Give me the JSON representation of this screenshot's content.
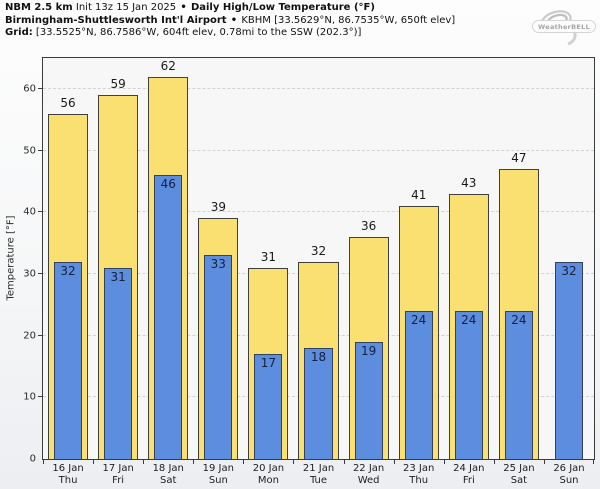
{
  "header": {
    "model_bold": "NBM 2.5 km",
    "init_text": "Init 13z 15 Jan 2025",
    "separator": "•",
    "product_bold": "Daily High/Low Temperature (°F)",
    "station_bold": "Birmingham-Shuttlesworth Int'l Airport",
    "station_info": "KBHM [33.5629°N, 86.7535°W, 650ft elev]",
    "grid_bold": "Grid:",
    "grid_info": "[33.5525°N, 86.7586°W, 604ft elev, 0.78mi to the SSW (202.3°)]"
  },
  "logo": {
    "brand": "WeatherBELL"
  },
  "chart_data": {
    "type": "bar",
    "title": "Daily High/Low Temperature (°F)",
    "xlabel": "",
    "ylabel": "Temperature [°F]",
    "ylim": [
      0,
      65
    ],
    "yticks": [
      0,
      10,
      20,
      30,
      40,
      50,
      60
    ],
    "grid": "horizontal-dashed",
    "legend_position": "none",
    "categories": [
      {
        "date": "16 Jan",
        "day": "Thu"
      },
      {
        "date": "17 Jan",
        "day": "Fri"
      },
      {
        "date": "18 Jan",
        "day": "Sat"
      },
      {
        "date": "19 Jan",
        "day": "Sun"
      },
      {
        "date": "20 Jan",
        "day": "Mon"
      },
      {
        "date": "21 Jan",
        "day": "Tue"
      },
      {
        "date": "22 Jan",
        "day": "Wed"
      },
      {
        "date": "23 Jan",
        "day": "Thu"
      },
      {
        "date": "24 Jan",
        "day": "Fri"
      },
      {
        "date": "25 Jan",
        "day": "Sat"
      },
      {
        "date": "26 Jan",
        "day": "Sun"
      }
    ],
    "series": [
      {
        "name": "High",
        "color": "#fadf71",
        "values": [
          56,
          59,
          62,
          39,
          31,
          32,
          36,
          41,
          43,
          47,
          null
        ]
      },
      {
        "name": "Low",
        "color": "#5c8ddf",
        "values": [
          32,
          31,
          46,
          33,
          17,
          18,
          19,
          24,
          24,
          24,
          32
        ]
      }
    ]
  },
  "colors": {
    "high_bar": "#fadf71",
    "low_bar": "#5c8ddf",
    "bar_edge": "#3f3f3f",
    "gridline": "#d2d2d2",
    "plot_background": "#f7f7f7"
  }
}
